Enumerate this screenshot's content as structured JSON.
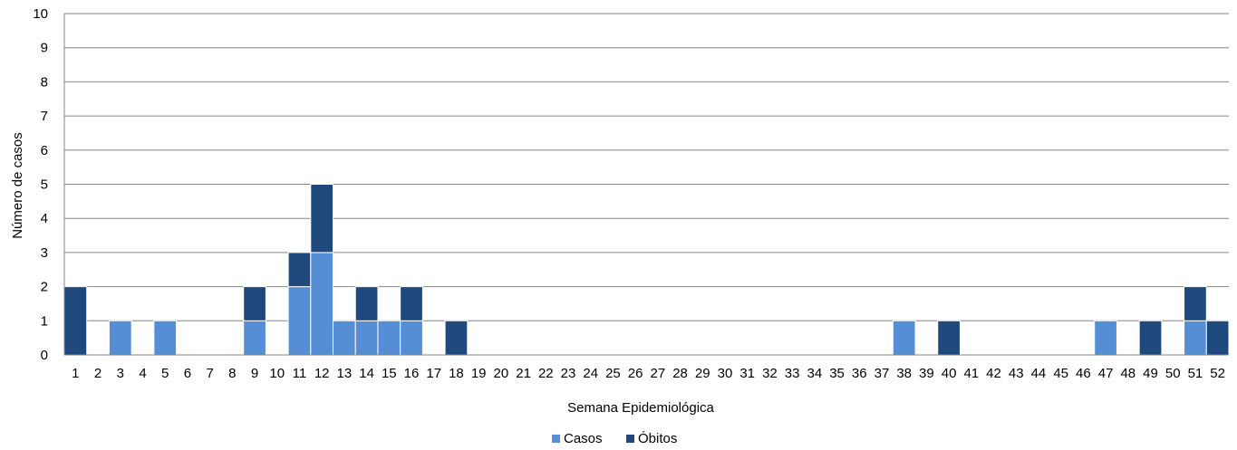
{
  "chart_data": {
    "type": "bar",
    "stacked": true,
    "xlabel": "Semana Epidemiológica",
    "ylabel": "Número de casos",
    "ylim": [
      0,
      10
    ],
    "yticks": [
      "0",
      "1",
      "2",
      "3",
      "4",
      "5",
      "6",
      "7",
      "8",
      "9",
      "10"
    ],
    "grid": true,
    "legend_position": "bottom",
    "categories": [
      "1",
      "2",
      "3",
      "4",
      "5",
      "6",
      "7",
      "8",
      "9",
      "10",
      "11",
      "12",
      "13",
      "14",
      "15",
      "16",
      "17",
      "18",
      "19",
      "20",
      "21",
      "22",
      "23",
      "24",
      "25",
      "26",
      "27",
      "28",
      "29",
      "30",
      "31",
      "32",
      "33",
      "34",
      "35",
      "36",
      "37",
      "38",
      "39",
      "40",
      "41",
      "42",
      "43",
      "44",
      "45",
      "46",
      "47",
      "48",
      "49",
      "50",
      "51",
      "52"
    ],
    "series": [
      {
        "name": "Casos",
        "color": "#558ed5",
        "values": [
          0,
          0,
          1,
          0,
          1,
          0,
          0,
          0,
          1,
          0,
          2,
          3,
          1,
          1,
          1,
          1,
          0,
          0,
          0,
          0,
          0,
          0,
          0,
          0,
          0,
          0,
          0,
          0,
          0,
          0,
          0,
          0,
          0,
          0,
          0,
          0,
          0,
          1,
          0,
          0,
          0,
          0,
          0,
          0,
          0,
          0,
          1,
          0,
          0,
          0,
          1,
          0
        ]
      },
      {
        "name": "Óbitos",
        "color": "#1f497d",
        "values": [
          2,
          0,
          0,
          0,
          0,
          0,
          0,
          0,
          1,
          0,
          1,
          2,
          0,
          1,
          0,
          1,
          0,
          1,
          0,
          0,
          0,
          0,
          0,
          0,
          0,
          0,
          0,
          0,
          0,
          0,
          0,
          0,
          0,
          0,
          0,
          0,
          0,
          0,
          0,
          1,
          0,
          0,
          0,
          0,
          0,
          0,
          0,
          0,
          1,
          0,
          1,
          1
        ]
      }
    ]
  }
}
